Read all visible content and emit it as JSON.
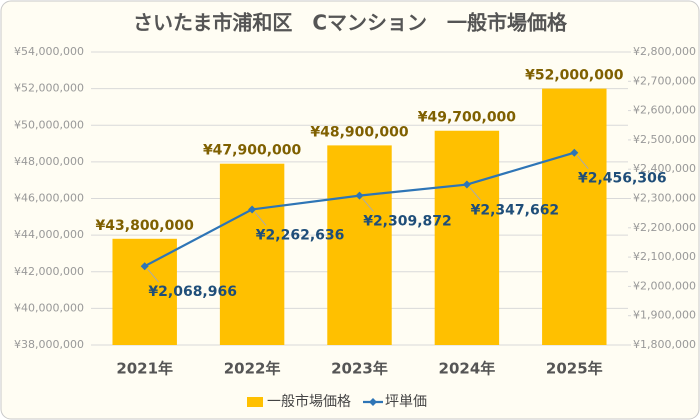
{
  "chart_data": {
    "type": "bar",
    "title": "さいたま市浦和区　Cマンション　一般市場価格",
    "categories": [
      "2021年",
      "2022年",
      "2023年",
      "2024年",
      "2025年"
    ],
    "series": [
      {
        "name": "一般市場価格",
        "type": "bar",
        "color": "#ffc000",
        "label_color": "#7f6000",
        "values": [
          43800000,
          47900000,
          48900000,
          49700000,
          52000000
        ],
        "value_labels": [
          "¥43,800,000",
          "¥47,900,000",
          "¥48,900,000",
          "¥49,700,000",
          "¥52,000,000"
        ]
      },
      {
        "name": "坪単価",
        "type": "line",
        "axis": "y2",
        "color": "#2e75b6",
        "label_color": "#1f4e79",
        "values": [
          2068966,
          2262636,
          2309872,
          2347662,
          2456306
        ],
        "value_labels": [
          "¥2,068,966",
          "¥2,262,636",
          "¥2,309,872",
          "¥2,347,662",
          "¥2,456,306"
        ]
      }
    ],
    "ylim": [
      38000000,
      54000000
    ],
    "yticks": [
      {
        "value": 38000000,
        "label": "¥38,000,000"
      },
      {
        "value": 40000000,
        "label": "¥40,000,000"
      },
      {
        "value": 42000000,
        "label": "¥42,000,000"
      },
      {
        "value": 44000000,
        "label": "¥44,000,000"
      },
      {
        "value": 46000000,
        "label": "¥46,000,000"
      },
      {
        "value": 48000000,
        "label": "¥48,000,000"
      },
      {
        "value": 50000000,
        "label": "¥50,000,000"
      },
      {
        "value": 52000000,
        "label": "¥52,000,000"
      },
      {
        "value": 54000000,
        "label": "¥54,000,000"
      }
    ],
    "y2lim": [
      1800000,
      2800000
    ],
    "y2ticks": [
      {
        "value": 1800000,
        "label": "¥1,800,000"
      },
      {
        "value": 1900000,
        "label": "¥1,900,000"
      },
      {
        "value": 2000000,
        "label": "¥2,000,000"
      },
      {
        "value": 2100000,
        "label": "¥2,100,000"
      },
      {
        "value": 2200000,
        "label": "¥2,200,000"
      },
      {
        "value": 2300000,
        "label": "¥2,300,000"
      },
      {
        "value": 2400000,
        "label": "¥2,400,000"
      },
      {
        "value": 2500000,
        "label": "¥2,500,000"
      },
      {
        "value": 2600000,
        "label": "¥2,600,000"
      },
      {
        "value": 2700000,
        "label": "¥2,700,000"
      },
      {
        "value": 2800000,
        "label": "¥2,800,000"
      }
    ],
    "grid": true,
    "legend": "bottom"
  }
}
